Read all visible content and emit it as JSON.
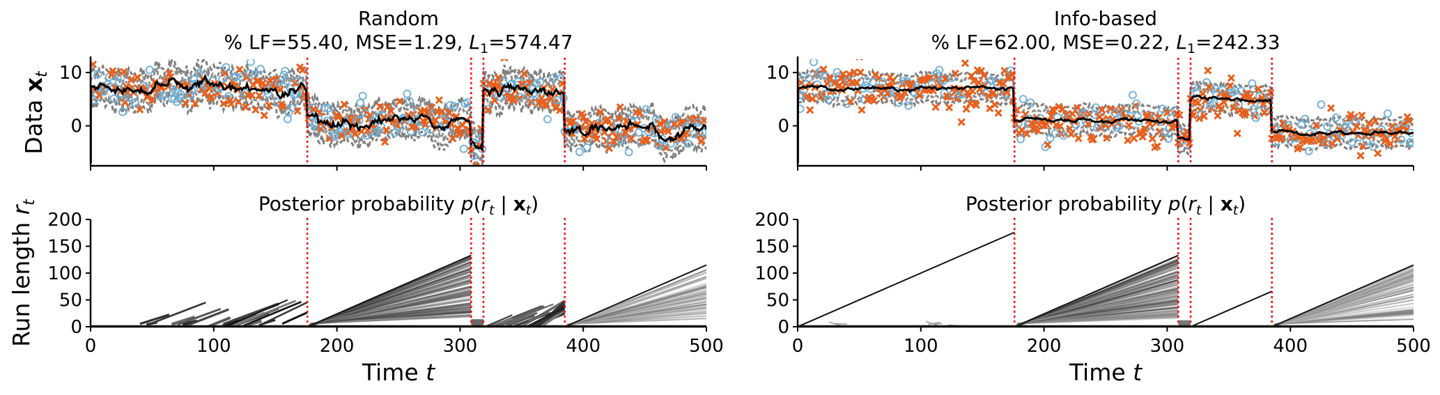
{
  "chart_data": [
    {
      "panel": "top-left",
      "type": "scatter",
      "title_line1": "Random",
      "title_line2": "% LF=55.40, MSE=1.29, L_1=574.47",
      "stats": {
        "lf": "55.40",
        "mse": "1.29",
        "l1": "574.47"
      },
      "ylabel": "Data x_t",
      "xlim": [
        0,
        500
      ],
      "ylim": [
        -7.5,
        12.5
      ],
      "yticks": [
        "0",
        "10"
      ],
      "ytick_values": [
        0,
        10
      ],
      "changepoints": [
        176,
        309,
        319,
        385
      ],
      "segments": [
        {
          "start": 0,
          "end": 176,
          "mean": 7.0
        },
        {
          "start": 176,
          "end": 309,
          "mean": 1.0
        },
        {
          "start": 309,
          "end": 319,
          "mean": -3.5
        },
        {
          "start": 319,
          "end": 385,
          "mean": 6.0
        },
        {
          "start": 385,
          "end": 500,
          "mean": -0.8
        }
      ],
      "queried_fraction": 0.554,
      "colors": {
        "observed": "#e8601c",
        "unobserved": "#6baed6",
        "mean": "#000000",
        "band": "#7f7f7f",
        "changepoint": "#ff0000"
      }
    },
    {
      "panel": "top-right",
      "type": "scatter",
      "title_line1": "Info-based",
      "title_line2": "% LF=62.00, MSE=0.22, L_1=242.33",
      "stats": {
        "lf": "62.00",
        "mse": "0.22",
        "l1": "242.33"
      },
      "xlim": [
        0,
        500
      ],
      "ylim": [
        -7.5,
        12.5
      ],
      "yticks": [
        "0",
        "10"
      ],
      "ytick_values": [
        0,
        10
      ],
      "changepoints": [
        176,
        309,
        319,
        385
      ],
      "segments": [
        {
          "start": 0,
          "end": 176,
          "mean": 7.0
        },
        {
          "start": 176,
          "end": 309,
          "mean": 1.0
        },
        {
          "start": 309,
          "end": 319,
          "mean": -2.5
        },
        {
          "start": 319,
          "end": 385,
          "mean": 5.0
        },
        {
          "start": 385,
          "end": 500,
          "mean": -1.2
        }
      ],
      "queried_fraction": 0.62,
      "colors": {
        "observed": "#e8601c",
        "unobserved": "#6baed6",
        "mean": "#000000",
        "band": "#7f7f7f",
        "changepoint": "#ff0000"
      }
    },
    {
      "panel": "bottom-left",
      "type": "heatmap",
      "title": "Posterior probability p(r_t | x_t)",
      "ylabel": "Run length r_t",
      "xlabel": "Time t",
      "xlim": [
        0,
        500
      ],
      "ylim": [
        0,
        200
      ],
      "xticks": [
        "0",
        "100",
        "200",
        "300",
        "400",
        "500"
      ],
      "xtick_values": [
        0,
        100,
        200,
        300,
        400,
        500
      ],
      "yticks": [
        "0",
        "50",
        "100",
        "150",
        "200"
      ],
      "ytick_values": [
        0,
        50,
        100,
        150,
        200
      ],
      "changepoints": [
        176,
        309,
        319,
        385
      ]
    },
    {
      "panel": "bottom-right",
      "type": "heatmap",
      "title": "Posterior probability p(r_t | x_t)",
      "xlabel": "Time t",
      "xlim": [
        0,
        500
      ],
      "ylim": [
        0,
        200
      ],
      "xticks": [
        "0",
        "100",
        "200",
        "300",
        "400",
        "500"
      ],
      "xtick_values": [
        0,
        100,
        200,
        300,
        400,
        500
      ],
      "yticks": [
        "0",
        "50",
        "100",
        "150",
        "200"
      ],
      "ytick_values": [
        0,
        50,
        100,
        150,
        200
      ],
      "changepoints": [
        176,
        309,
        319,
        385
      ]
    }
  ]
}
